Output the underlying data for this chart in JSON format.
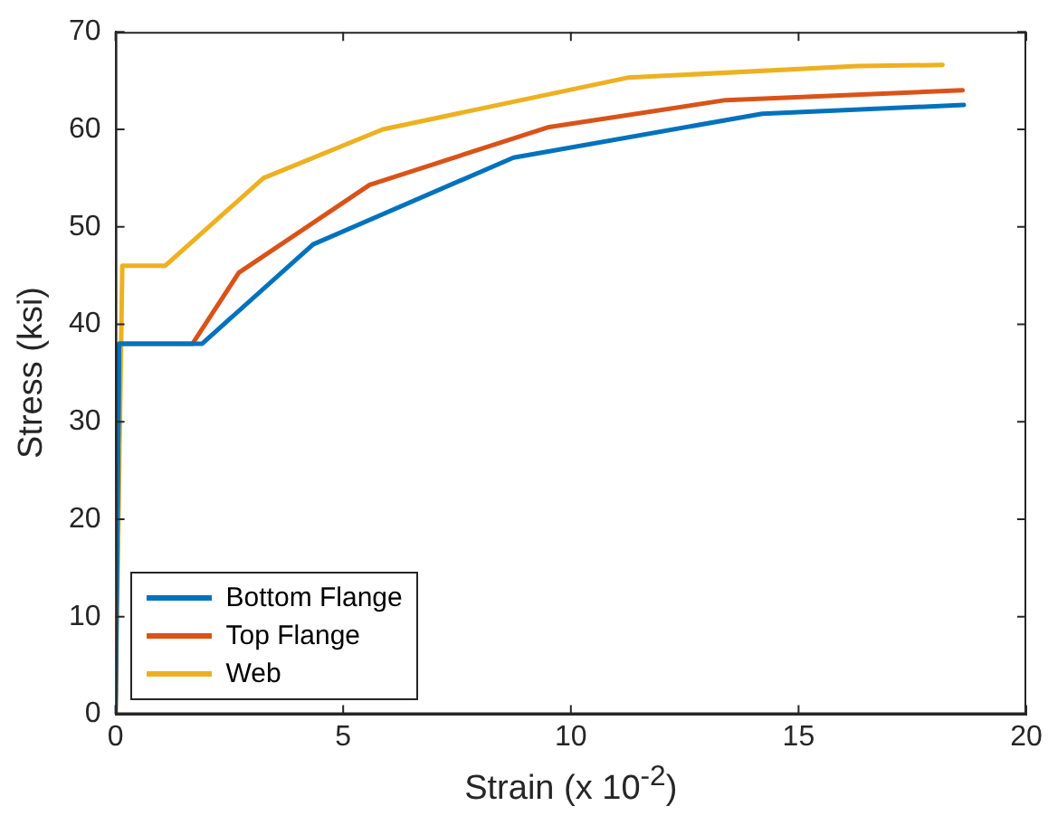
{
  "chart_data": {
    "type": "line",
    "xlabel": "Strain (x 10$^{-2}$)",
    "ylabel": "Stress (ksi)",
    "xlim": [
      0,
      20
    ],
    "xticks": [
      0,
      5,
      10,
      15,
      20
    ],
    "ylim": [
      0,
      70
    ],
    "yticks": [
      0,
      10,
      20,
      30,
      40,
      50,
      60,
      70
    ],
    "grid": false,
    "legend": "bottom left",
    "marker": "none",
    "line_style": "solid",
    "series": [
      {
        "name": "Bottom Flange",
        "color": "#0072bd",
        "x": [
          0,
          0.08,
          1.9,
          4.34,
          8.74,
          14.2,
          18.63
        ],
        "values": [
          0,
          38,
          38,
          48.2,
          57.1,
          61.6,
          62.5
        ]
      },
      {
        "name": "Top Flange",
        "color": "#d95319",
        "x": [
          0,
          0.08,
          1.69,
          2.71,
          5.58,
          9.49,
          13.4,
          18.6
        ],
        "values": [
          0,
          38,
          38,
          45.3,
          54.3,
          60.2,
          63,
          64
        ]
      },
      {
        "name": "Web",
        "color": "#edb120",
        "x": [
          0,
          0.15,
          1.09,
          3.25,
          5.87,
          11.25,
          16.3,
          18.16
        ],
        "values": [
          0,
          46,
          46,
          55,
          60,
          65.3,
          66.5,
          66.6
        ]
      }
    ]
  }
}
